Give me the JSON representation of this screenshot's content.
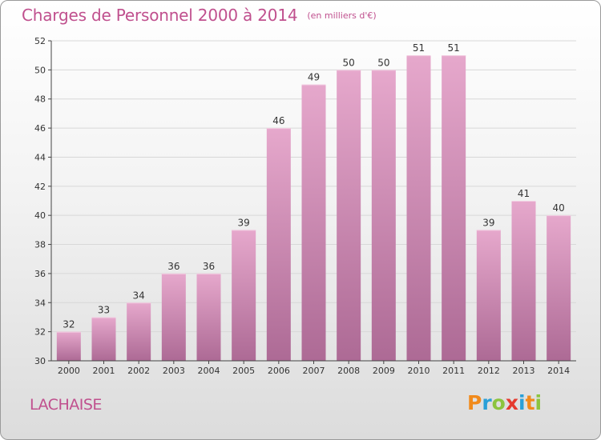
{
  "title": "Charges de Personnel 2000 à 2014",
  "subtitle": "(en milliers d'€)",
  "commune": "LACHAISE",
  "brand": {
    "letters": [
      "P",
      "r",
      "o",
      "x",
      "i",
      "t",
      "i"
    ],
    "colors": [
      "#f18a1b",
      "#2aa0d8",
      "#8cc43e",
      "#e53a2e",
      "#2aa0d8",
      "#f18a1b",
      "#8cc43e"
    ]
  },
  "colors": {
    "accent": "#c0508e",
    "bar_top": "#e6a8cc",
    "bar_bottom": "#ad6a95",
    "grid": "#d8d8d8",
    "axis": "#444444",
    "text": "#333333"
  },
  "chart_data": {
    "type": "bar",
    "categories": [
      "2000",
      "2001",
      "2002",
      "2003",
      "2004",
      "2005",
      "2006",
      "2007",
      "2008",
      "2009",
      "2010",
      "2011",
      "2012",
      "2013",
      "2014"
    ],
    "values": [
      32,
      33,
      34,
      36,
      36,
      39,
      46,
      49,
      50,
      50,
      51,
      51,
      39,
      41,
      40
    ],
    "ylim": [
      30,
      52
    ],
    "yticks": [
      30,
      32,
      34,
      36,
      38,
      40,
      42,
      44,
      46,
      48,
      50,
      52
    ],
    "grid": true,
    "data_labels": true
  }
}
